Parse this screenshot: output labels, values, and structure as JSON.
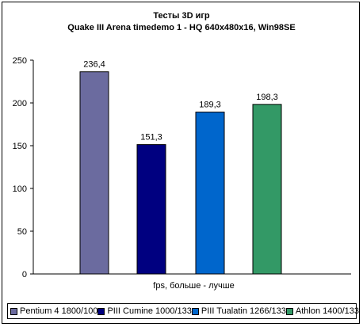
{
  "chart_data": {
    "type": "bar",
    "title": "Тесты 3D игр",
    "subtitle": "Quake III Arena timedemo 1 - HQ 640x480x16, Win98SE",
    "xlabel": "fps, больше - лучше",
    "ylabel": "",
    "ylim": [
      0,
      250
    ],
    "yticks": [
      0,
      50,
      100,
      150,
      200,
      250
    ],
    "grid": false,
    "legend_position": "bottom",
    "categories": [
      "Pentium 4 1800/100",
      "PIII Cumine 1000/133",
      "PIII Tualatin 1266/133",
      "Athlon 1400/133"
    ],
    "values": [
      236.4,
      151.3,
      189.3,
      198.3
    ],
    "value_labels": [
      "236,4",
      "151,3",
      "189,3",
      "198,3"
    ],
    "colors": [
      "#6b6b9f",
      "#000080",
      "#0066cc",
      "#339966"
    ]
  }
}
